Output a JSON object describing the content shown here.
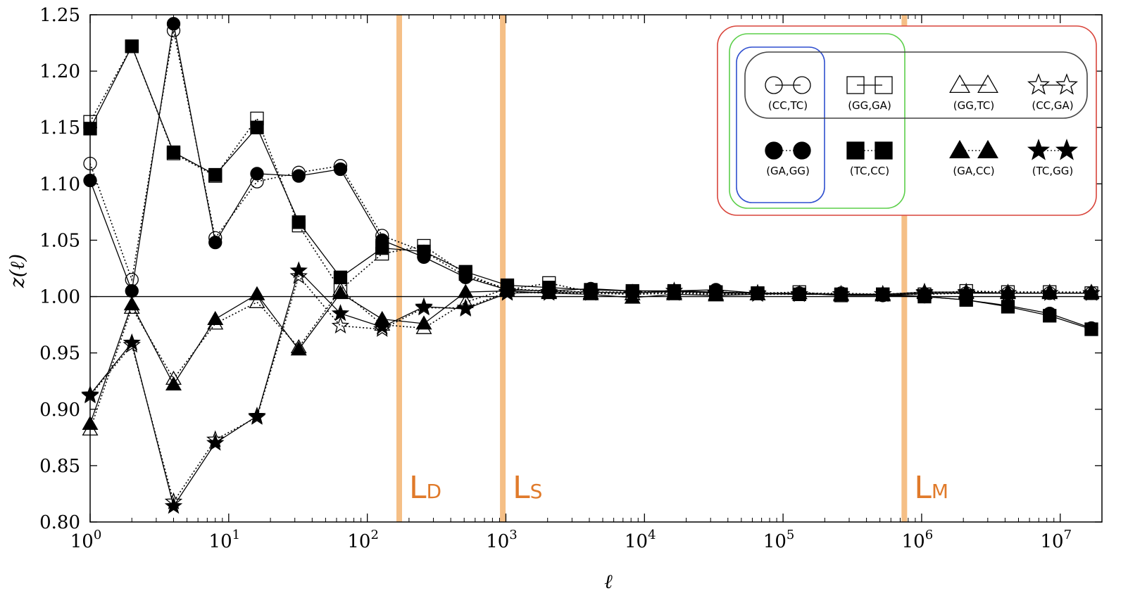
{
  "chart_data": {
    "type": "line",
    "xlabel": "ℓ",
    "ylabel": "z(ℓ)",
    "xscale": "log",
    "xlim": [
      1,
      20000000
    ],
    "ylim": [
      0.8,
      1.25
    ],
    "grid": false,
    "reference_line_y": 1.0,
    "x_ticks": [
      {
        "value": 1,
        "base": "10",
        "exp": "0"
      },
      {
        "value": 10,
        "base": "10",
        "exp": "1"
      },
      {
        "value": 100,
        "base": "10",
        "exp": "2"
      },
      {
        "value": 1000,
        "base": "10",
        "exp": "3"
      },
      {
        "value": 10000,
        "base": "10",
        "exp": "4"
      },
      {
        "value": 100000,
        "base": "10",
        "exp": "5"
      },
      {
        "value": 1000000,
        "base": "10",
        "exp": "6"
      },
      {
        "value": 10000000,
        "base": "10",
        "exp": "7"
      }
    ],
    "y_ticks": [
      "0.80",
      "0.85",
      "0.90",
      "0.95",
      "1.00",
      "1.05",
      "1.10",
      "1.15",
      "1.20",
      "1.25"
    ],
    "vertical_lines": [
      {
        "x": 170,
        "label": "L",
        "sub": "D",
        "color": "#f5bf86"
      },
      {
        "x": 950,
        "label": "L",
        "sub": "S",
        "color": "#f5bf86"
      },
      {
        "x": 750000,
        "label": "L",
        "sub": "M",
        "color": "#f5bf86"
      }
    ],
    "x": [
      1,
      2,
      4,
      8,
      16,
      32,
      64,
      128,
      256,
      512,
      1024,
      2048,
      4096,
      8192,
      16384,
      32768,
      65536,
      131072,
      262144,
      524288,
      1048576,
      2097152,
      4194304,
      8388608,
      16777216
    ],
    "series": [
      {
        "name": "(CC,TC)",
        "marker": "circle",
        "filled": false,
        "dash": "dotted",
        "values": [
          1.118,
          1.015,
          1.236,
          1.052,
          1.102,
          1.11,
          1.116,
          1.054,
          1.04,
          1.018,
          1.007,
          1.005,
          1.004,
          1.004,
          1.004,
          1.004,
          1.003,
          1.003,
          1.003,
          1.002,
          1.002,
          1.003,
          1.003,
          1.003,
          1.003
        ]
      },
      {
        "name": "(GA,GG)",
        "marker": "circle",
        "filled": true,
        "dash": "solid",
        "values": [
          1.103,
          1.005,
          1.242,
          1.048,
          1.109,
          1.107,
          1.113,
          1.05,
          1.035,
          1.017,
          1.006,
          1.005,
          1.007,
          1.005,
          1.005,
          1.006,
          1.003,
          1.002,
          1.002,
          1.001,
          1.0,
          0.997,
          0.992,
          0.985,
          0.972
        ]
      },
      {
        "name": "(GG,GA)",
        "marker": "square",
        "filled": false,
        "dash": "dotted",
        "values": [
          1.155,
          1.222,
          1.127,
          1.107,
          1.158,
          1.063,
          1.006,
          1.038,
          1.045,
          1.02,
          1.006,
          1.012,
          1.004,
          1.003,
          1.004,
          1.003,
          1.003,
          1.004,
          1.001,
          1.002,
          1.002,
          1.005,
          1.004,
          1.004,
          1.003
        ]
      },
      {
        "name": "(TC,CC)",
        "marker": "square",
        "filled": true,
        "dash": "solid",
        "values": [
          1.149,
          1.222,
          1.128,
          1.108,
          1.15,
          1.066,
          1.017,
          1.043,
          1.04,
          1.022,
          1.01,
          1.008,
          1.006,
          1.005,
          1.005,
          1.004,
          1.003,
          1.002,
          1.002,
          1.002,
          1.0,
          0.997,
          0.991,
          0.983,
          0.971
        ]
      },
      {
        "name": "(GG,TC)",
        "marker": "triangle",
        "filled": false,
        "dash": "dotted",
        "values": [
          0.882,
          0.99,
          0.927,
          0.976,
          0.995,
          0.955,
          1.006,
          0.975,
          0.972,
          0.995,
          1.007,
          1.004,
          1.003,
          1.002,
          1.003,
          1.002,
          1.002,
          1.003,
          1.002,
          1.002,
          1.004,
          1.004,
          1.004,
          1.004,
          1.004
        ]
      },
      {
        "name": "(GA,CC)",
        "marker": "triangle",
        "filled": true,
        "dash": "solid",
        "values": [
          0.887,
          0.993,
          0.922,
          0.98,
          1.002,
          0.953,
          1.003,
          0.98,
          0.976,
          1.004,
          1.005,
          1.003,
          1.002,
          0.999,
          1.002,
          1.001,
          1.002,
          1.003,
          1.001,
          1.001,
          1.003,
          1.003,
          1.003,
          1.003,
          1.003
        ]
      },
      {
        "name": "(CC,GA)",
        "marker": "star",
        "filled": false,
        "dash": "dotted",
        "values": [
          0.912,
          0.957,
          0.818,
          0.873,
          0.893,
          1.018,
          0.974,
          0.971,
          0.99,
          0.99,
          1.004,
          1.003,
          1.003,
          1.002,
          1.003,
          1.003,
          1.002,
          1.002,
          1.002,
          1.002,
          1.003,
          1.003,
          1.003,
          1.003,
          1.003
        ]
      },
      {
        "name": "(TC,GG)",
        "marker": "star",
        "filled": true,
        "dash": "solid",
        "values": [
          0.913,
          0.959,
          0.814,
          0.87,
          0.894,
          1.023,
          0.985,
          0.973,
          0.991,
          0.989,
          1.003,
          1.004,
          1.004,
          1.003,
          1.005,
          1.003,
          1.003,
          1.002,
          1.002,
          1.002,
          1.004,
          1.004,
          1.003,
          1.003,
          1.003
        ]
      }
    ],
    "legend": {
      "placement": "top-right",
      "rows": [
        [
          {
            "label": "(CC,TC)",
            "marker": "circle",
            "filled": false
          },
          {
            "label": "(GG,GA)",
            "marker": "square",
            "filled": false
          },
          {
            "label": "(GG,TC)",
            "marker": "triangle",
            "filled": false
          },
          {
            "label": "(CC,GA)",
            "marker": "star",
            "filled": false
          }
        ],
        [
          {
            "label": "(GA,GG)",
            "marker": "circle",
            "filled": true
          },
          {
            "label": "(TC,CC)",
            "marker": "square",
            "filled": true
          },
          {
            "label": "(GA,CC)",
            "marker": "triangle",
            "filled": true
          },
          {
            "label": "(TC,GG)",
            "marker": "star",
            "filled": true
          }
        ]
      ],
      "group_colors": {
        "outer": "#d9443a",
        "middle": "#5ccf4a",
        "inner_column": "#2f4fcf",
        "top_row": "#444444"
      }
    }
  }
}
